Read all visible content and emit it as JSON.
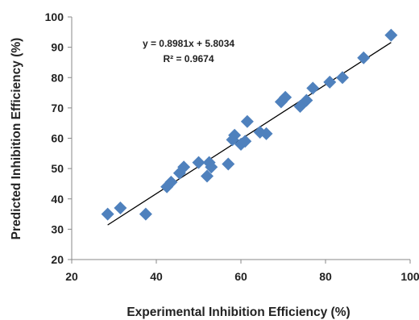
{
  "chart_data": {
    "type": "scatter",
    "xlabel": "Experimental Inhibition Efficiency (%)",
    "ylabel": "Predicted Inhibition Efficiency (%)",
    "xlim": [
      20,
      100
    ],
    "ylim": [
      20,
      100
    ],
    "x_ticks": [
      20,
      40,
      60,
      80,
      100
    ],
    "y_ticks": [
      20,
      30,
      40,
      50,
      60,
      70,
      80,
      90,
      100
    ],
    "grid": false,
    "marker": "diamond",
    "marker_color": "#4f81bd",
    "trendline": {
      "type": "linear",
      "slope": 0.8981,
      "intercept": 5.8034,
      "x_range": [
        28.5,
        95.5
      ],
      "equation_label": "y = 0.8981x + 5.8034",
      "r2_label": "R² = 0.9674",
      "color": "#000000"
    },
    "series": [
      {
        "points": [
          [
            28.5,
            35
          ],
          [
            31.5,
            37
          ],
          [
            37.5,
            35
          ],
          [
            42.5,
            44
          ],
          [
            43.5,
            45.5
          ],
          [
            45.5,
            48.5
          ],
          [
            46.5,
            50.5
          ],
          [
            50,
            52
          ],
          [
            52,
            47.5
          ],
          [
            52.5,
            52
          ],
          [
            53,
            50.5
          ],
          [
            57,
            51.5
          ],
          [
            58,
            59.5
          ],
          [
            58.5,
            61
          ],
          [
            60,
            58
          ],
          [
            61,
            59
          ],
          [
            61.5,
            65.5
          ],
          [
            64.5,
            62
          ],
          [
            66,
            61.5
          ],
          [
            69.5,
            72
          ],
          [
            70.5,
            73.5
          ],
          [
            74,
            70.5
          ],
          [
            75.5,
            72.5
          ],
          [
            77,
            76.5
          ],
          [
            81,
            78.5
          ],
          [
            84,
            80
          ],
          [
            89,
            86.5
          ],
          [
            95.5,
            94
          ]
        ]
      }
    ]
  }
}
